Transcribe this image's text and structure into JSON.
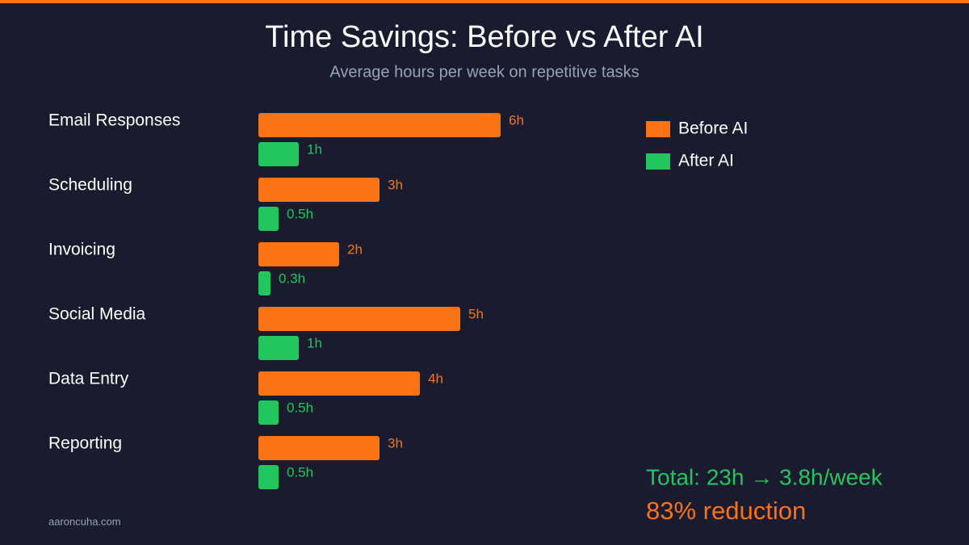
{
  "chart_data": {
    "type": "bar",
    "orientation": "horizontal",
    "title": "Time Savings: Before vs After AI",
    "subtitle": "Average hours per week on repetitive tasks",
    "categories": [
      "Email Responses",
      "Scheduling",
      "Invoicing",
      "Social Media",
      "Data Entry",
      "Reporting"
    ],
    "series": [
      {
        "name": "Before AI",
        "color": "#f97316",
        "values": [
          6,
          3,
          2,
          5,
          4,
          3
        ],
        "value_labels": [
          "6h",
          "3h",
          "2h",
          "5h",
          "4h",
          "3h"
        ]
      },
      {
        "name": "After AI",
        "color": "#22c55e",
        "values": [
          1,
          0.5,
          0.3,
          1,
          0.5,
          0.5
        ],
        "value_labels": [
          "1h",
          "0.5h",
          "0.3h",
          "1h",
          "0.5h",
          "0.5h"
        ]
      }
    ],
    "xlim": [
      0,
      6
    ],
    "legend": "top-right",
    "annotations": [
      "Total: 23h → 3.8h/week",
      "83% reduction"
    ],
    "source": "aaroncuha.com"
  }
}
